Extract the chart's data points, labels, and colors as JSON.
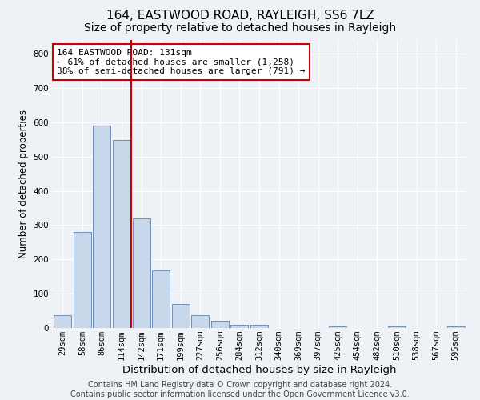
{
  "title1": "164, EASTWOOD ROAD, RAYLEIGH, SS6 7LZ",
  "title2": "Size of property relative to detached houses in Rayleigh",
  "xlabel": "Distribution of detached houses by size in Rayleigh",
  "ylabel": "Number of detached properties",
  "categories": [
    "29sqm",
    "58sqm",
    "86sqm",
    "114sqm",
    "142sqm",
    "171sqm",
    "199sqm",
    "227sqm",
    "256sqm",
    "284sqm",
    "312sqm",
    "340sqm",
    "369sqm",
    "397sqm",
    "425sqm",
    "454sqm",
    "482sqm",
    "510sqm",
    "538sqm",
    "567sqm",
    "595sqm"
  ],
  "values": [
    38,
    280,
    590,
    548,
    320,
    168,
    70,
    38,
    22,
    10,
    10,
    0,
    0,
    0,
    5,
    0,
    0,
    5,
    0,
    0,
    5
  ],
  "bar_color": "#c8d8ea",
  "bar_edge_color": "#7090b8",
  "property_line_x": 3.5,
  "property_line_color": "#cc0000",
  "annotation_text": "164 EASTWOOD ROAD: 131sqm\n← 61% of detached houses are smaller (1,258)\n38% of semi-detached houses are larger (791) →",
  "annotation_box_color": "#ffffff",
  "annotation_box_edge_color": "#cc0000",
  "ylim": [
    0,
    840
  ],
  "yticks": [
    0,
    100,
    200,
    300,
    400,
    500,
    600,
    700,
    800
  ],
  "footer_text": "Contains HM Land Registry data © Crown copyright and database right 2024.\nContains public sector information licensed under the Open Government Licence v3.0.",
  "background_color": "#eef2f7",
  "plot_background_color": "#eef2f7",
  "grid_color": "#ffffff",
  "title1_fontsize": 11,
  "title2_fontsize": 10,
  "xlabel_fontsize": 9.5,
  "ylabel_fontsize": 8.5,
  "tick_fontsize": 7.5,
  "annotation_fontsize": 8,
  "footer_fontsize": 7
}
